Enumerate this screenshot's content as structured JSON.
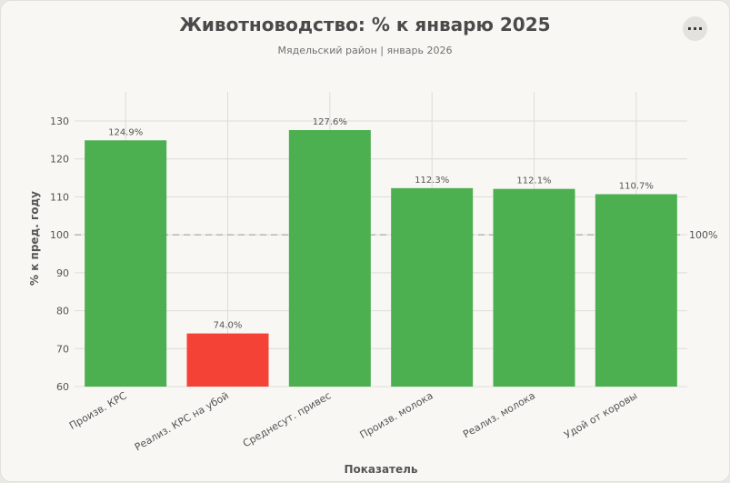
{
  "header": {
    "title": "Животноводство: % к январю 2025",
    "subtitle": "Мядельский район | январь 2026",
    "menu_label": "···"
  },
  "colors": {
    "above": "#4caf50",
    "below": "#f44336",
    "grid": "#dcdcd8",
    "reference": "#999999"
  },
  "chart_data": {
    "type": "bar",
    "title": "Животноводство: % к январю 2025",
    "subtitle": "Мядельский район | январь 2026",
    "xlabel": "Показатель",
    "ylabel": "% к пред. году",
    "categories": [
      "Произв. КРС",
      "Реализ. КРС на убой",
      "Среднесут. привес",
      "Произв. молока",
      "Реализ. молока",
      "Удой от коровы"
    ],
    "values": [
      124.9,
      74.0,
      127.6,
      112.3,
      112.1,
      110.7
    ],
    "value_labels": [
      "124.9%",
      "74.0%",
      "127.6%",
      "112.3%",
      "112.1%",
      "110.7%"
    ],
    "ylim": [
      60,
      130
    ],
    "yticks": [
      60,
      70,
      80,
      90,
      100,
      110,
      120,
      130
    ],
    "reference_line": {
      "value": 100,
      "label": "100%"
    },
    "grid": true,
    "legend": "none"
  }
}
